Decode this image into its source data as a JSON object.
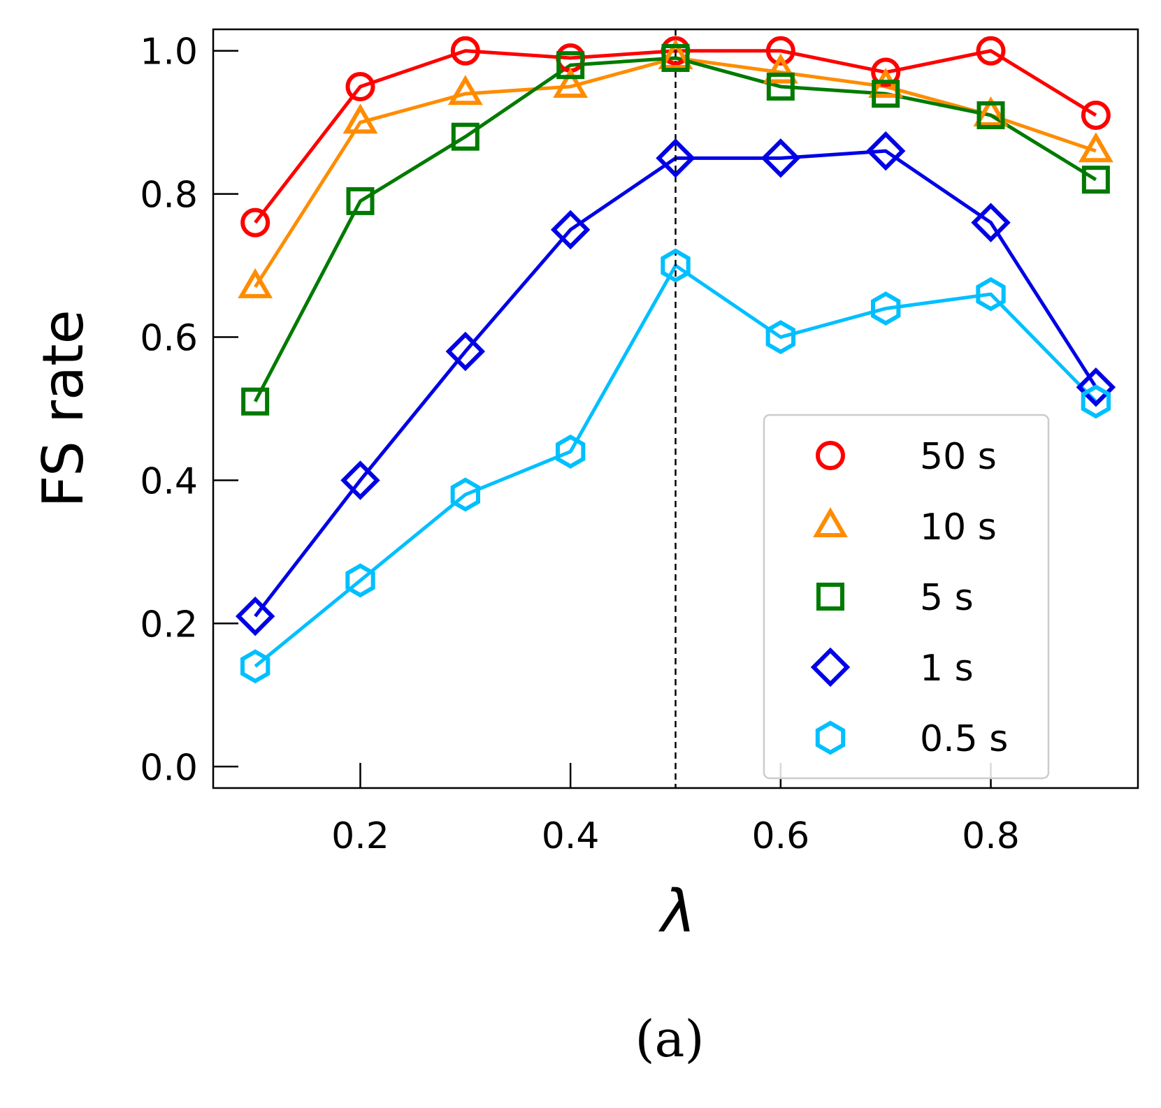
{
  "chart_data": {
    "type": "line",
    "title": "",
    "xlabel": "λ",
    "ylabel": "FS rate",
    "caption": "(a)",
    "x": [
      0.1,
      0.2,
      0.3,
      0.4,
      0.5,
      0.6,
      0.7,
      0.8,
      0.9
    ],
    "xlim": [
      0.06,
      0.94
    ],
    "ylim": [
      -0.03,
      1.03
    ],
    "xticks": [
      0.2,
      0.4,
      0.6,
      0.8
    ],
    "xtick_labels": [
      "0.2",
      "0.4",
      "0.6",
      "0.8"
    ],
    "yticks": [
      0.0,
      0.2,
      0.4,
      0.6,
      0.8,
      1.0
    ],
    "ytick_labels": [
      "0.0",
      "0.2",
      "0.4",
      "0.6",
      "0.8",
      "1.0"
    ],
    "vline": 0.5,
    "grid": false,
    "legend_position": "lower-right",
    "series": [
      {
        "name": "50 s",
        "marker": "circle",
        "color": "#ff0000",
        "values": [
          0.76,
          0.95,
          1.0,
          0.99,
          1.0,
          1.0,
          0.97,
          1.0,
          0.91
        ]
      },
      {
        "name": "10 s",
        "marker": "triangle",
        "color": "#ff8c00",
        "values": [
          0.67,
          0.9,
          0.94,
          0.95,
          0.99,
          0.97,
          0.95,
          0.91,
          0.86
        ]
      },
      {
        "name": "5 s",
        "marker": "square",
        "color": "#007a00",
        "values": [
          0.51,
          0.79,
          0.88,
          0.98,
          0.99,
          0.95,
          0.94,
          0.91,
          0.82
        ]
      },
      {
        "name": "1 s",
        "marker": "diamond",
        "color": "#0000e6",
        "values": [
          0.21,
          0.4,
          0.58,
          0.75,
          0.85,
          0.85,
          0.86,
          0.76,
          0.53
        ]
      },
      {
        "name": "0.5 s",
        "marker": "hexagon",
        "color": "#00bfff",
        "values": [
          0.14,
          0.26,
          0.38,
          0.44,
          0.7,
          0.6,
          0.64,
          0.66,
          0.51
        ]
      }
    ]
  }
}
